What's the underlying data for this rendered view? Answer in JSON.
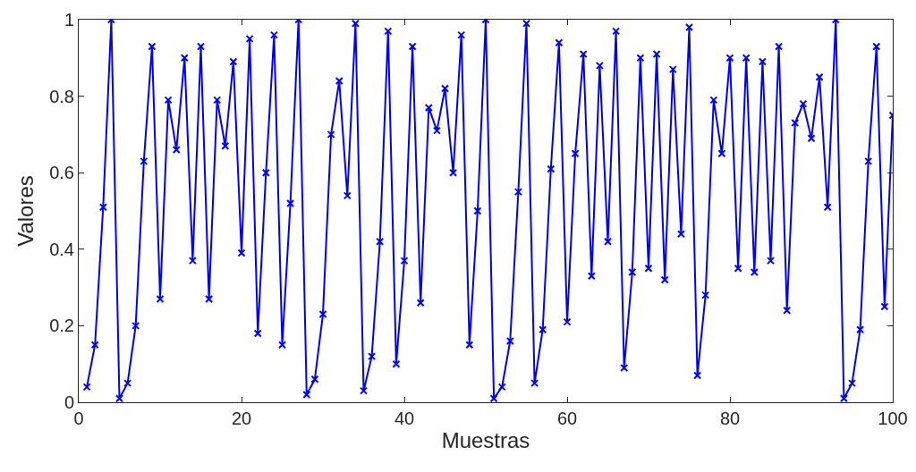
{
  "chart_data": {
    "type": "line",
    "xlabel": "Muestras",
    "ylabel": "Valores",
    "xlim": [
      0,
      100
    ],
    "xticks": [
      0,
      20,
      40,
      60,
      80,
      100
    ],
    "ylim": [
      0,
      1
    ],
    "yticks": [
      0,
      0.2,
      0.4,
      0.6,
      0.8,
      1
    ],
    "grid": false,
    "marker": "cross",
    "line_style": "solid",
    "x": [
      1,
      2,
      3,
      4,
      5,
      6,
      7,
      8,
      9,
      10,
      11,
      12,
      13,
      14,
      15,
      16,
      17,
      18,
      19,
      20,
      21,
      22,
      23,
      24,
      25,
      26,
      27,
      28,
      29,
      30,
      31,
      32,
      33,
      34,
      35,
      36,
      37,
      38,
      39,
      40,
      41,
      42,
      43,
      44,
      45,
      46,
      47,
      48,
      49,
      50,
      51,
      52,
      53,
      54,
      55,
      56,
      57,
      58,
      59,
      60,
      61,
      62,
      63,
      64,
      65,
      66,
      67,
      68,
      69,
      70,
      71,
      72,
      73,
      74,
      75,
      76,
      77,
      78,
      79,
      80,
      81,
      82,
      83,
      84,
      85,
      86,
      87,
      88,
      89,
      90,
      91,
      92,
      93,
      94,
      95,
      96,
      97,
      98,
      99,
      100
    ],
    "series": [
      {
        "color": "#0000ff",
        "values": [
          0.04,
          0.15,
          0.51,
          1.0,
          0.01,
          0.05,
          0.2,
          0.63,
          0.93,
          0.27,
          0.79,
          0.66,
          0.9,
          0.37,
          0.93,
          0.27,
          0.79,
          0.67,
          0.89,
          0.39,
          0.95,
          0.18,
          0.6,
          0.96,
          0.15,
          0.52,
          1.0,
          0.02,
          0.06,
          0.23,
          0.7,
          0.84,
          0.54,
          0.99,
          0.03,
          0.12,
          0.42,
          0.97,
          0.1,
          0.37,
          0.93,
          0.26,
          0.77,
          0.71,
          0.82,
          0.6,
          0.96,
          0.15,
          0.5,
          1.0,
          0.01,
          0.04,
          0.16,
          0.55,
          0.99,
          0.05,
          0.19,
          0.61,
          0.94,
          0.21,
          0.65,
          0.91,
          0.33,
          0.88,
          0.42,
          0.97,
          0.09,
          0.34,
          0.9,
          0.35,
          0.91,
          0.32,
          0.87,
          0.44,
          0.98,
          0.07,
          0.28,
          0.79,
          0.65,
          0.9,
          0.35,
          0.9,
          0.34,
          0.89,
          0.37,
          0.93,
          0.24,
          0.73,
          0.78,
          0.69,
          0.85,
          0.51,
          1.0,
          0.01,
          0.05,
          0.19,
          0.63,
          0.93,
          0.25,
          0.75
        ]
      }
    ]
  }
}
